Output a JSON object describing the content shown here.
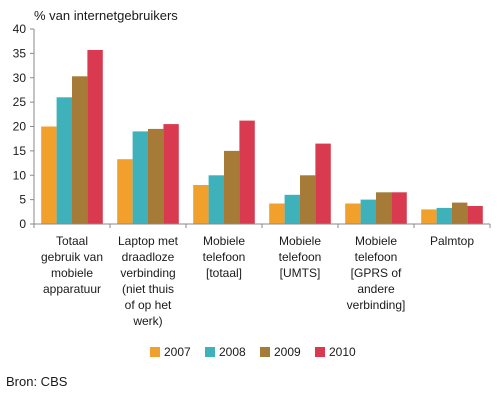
{
  "chart_data": {
    "type": "bar",
    "ylabel": "% van internetgebruikers",
    "ylim": [
      0,
      40
    ],
    "yticks": [
      0,
      5,
      10,
      15,
      20,
      25,
      30,
      35,
      40
    ],
    "grid": false,
    "legend_position": "bottom",
    "categories": [
      [
        "Totaal",
        "gebruik van",
        "mobiele",
        "apparatuur"
      ],
      [
        "Laptop met",
        "draadloze",
        "verbinding",
        "(niet thuis",
        "of op het",
        "werk)"
      ],
      [
        "Mobiele",
        "telefoon",
        "[totaal]"
      ],
      [
        "Mobiele",
        "telefoon",
        "[UMTS]"
      ],
      [
        "Mobiele",
        "telefoon",
        "[GPRS of",
        "andere",
        "verbinding]"
      ],
      [
        "Palmtop"
      ]
    ],
    "series": [
      {
        "name": "2007",
        "color": "#f2a02c",
        "values": [
          20,
          13.3,
          8,
          4.2,
          4.2,
          3
        ]
      },
      {
        "name": "2008",
        "color": "#3fb1bb",
        "values": [
          26,
          19,
          10,
          6,
          5,
          3.3
        ]
      },
      {
        "name": "2009",
        "color": "#a57b37",
        "values": [
          30.3,
          19.5,
          15,
          10,
          6.5,
          4.4
        ]
      },
      {
        "name": "2010",
        "color": "#d93a50",
        "values": [
          35.7,
          20.5,
          21.2,
          16.5,
          6.5,
          3.7
        ]
      }
    ],
    "source": "Bron: CBS"
  }
}
